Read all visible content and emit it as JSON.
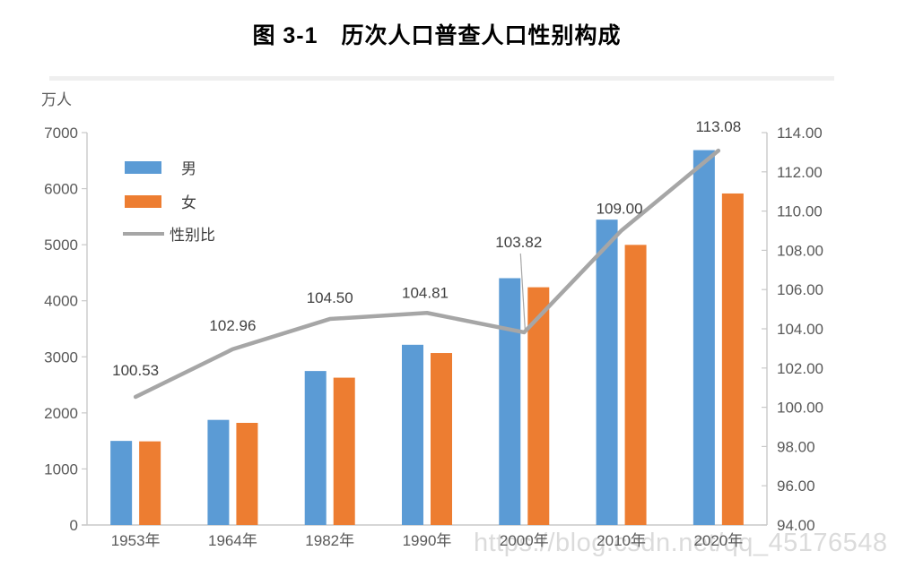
{
  "title": "图 3-1　历次人口普查人口性别构成",
  "watermark": "https://blog.csdn.net/qq_45176548",
  "legend": {
    "male_label": "男",
    "female_label": "女",
    "ratio_label": "性别比"
  },
  "colors": {
    "male_bar": "#5B9BD5",
    "female_bar": "#ED7D31",
    "ratio_line": "#A6A6A6",
    "axis_line": "#C9C9C9",
    "tick_text": "#595959",
    "point_label_text": "#404040",
    "watermark_text": "#DBDBDB"
  },
  "chart_data": {
    "type": "bar",
    "subtype": "combo-bar-line-dual-axis",
    "title": "图 3-1　历次人口普查人口性别构成",
    "categories": [
      "1953年",
      "1964年",
      "1982年",
      "1990年",
      "2000年",
      "2010年",
      "2020年"
    ],
    "series": [
      {
        "name": "男",
        "render": "bar",
        "axis": "left",
        "values": [
          1500,
          1875,
          2747,
          3215,
          4403,
          5447,
          6687
        ]
      },
      {
        "name": "女",
        "render": "bar",
        "axis": "left",
        "values": [
          1492,
          1822,
          2628,
          3068,
          4241,
          4997,
          5914
        ]
      },
      {
        "name": "性别比",
        "render": "line",
        "axis": "right",
        "values": [
          100.53,
          102.96,
          104.5,
          104.81,
          103.82,
          109.0,
          113.08
        ]
      }
    ],
    "point_labels": [
      "100.53",
      "102.96",
      "104.50",
      "104.81",
      "103.82",
      "109.00",
      "113.08"
    ],
    "left_axis": {
      "unit_label": "万人",
      "min": 0,
      "max": 7000,
      "step": 1000,
      "tick_labels": [
        "0",
        "1000",
        "2000",
        "3000",
        "4000",
        "5000",
        "6000",
        "7000"
      ]
    },
    "right_axis": {
      "min": 94,
      "max": 114,
      "step": 2,
      "tick_labels": [
        "94.00",
        "96.00",
        "98.00",
        "100.00",
        "102.00",
        "104.00",
        "106.00",
        "108.00",
        "110.00",
        "112.00",
        "114.00"
      ]
    },
    "grid": false,
    "legend_position": "inside-top-left"
  }
}
